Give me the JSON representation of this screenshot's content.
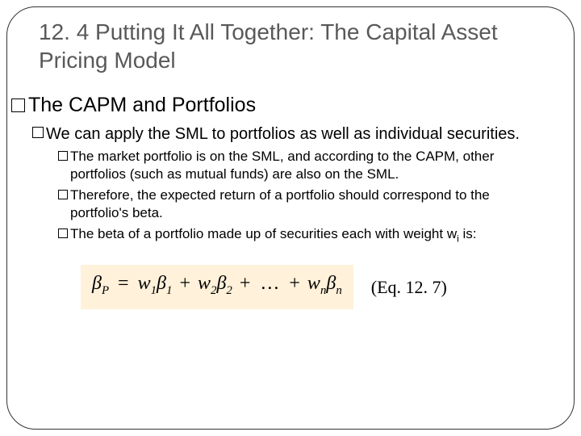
{
  "title": "12. 4 Putting It All Together: The Capital Asset Pricing Model",
  "heading1": "The CAPM and Portfolios",
  "heading2": "We can apply the SML to portfolios as well as individual securities.",
  "bullets": {
    "b1": "The market portfolio is on the SML, and according to the CAPM, other portfolios (such as mutual funds) are also on the SML.",
    "b2": "Therefore, the expected return of a portfolio should correspond to the portfolio's beta.",
    "b3_pre": "The beta of a portfolio made up of securities each with weight w",
    "b3_sub": "i",
    "b3_post": " is:"
  },
  "equation": {
    "beta": "β",
    "P": "P",
    "eq": "=",
    "w": "w",
    "one": "1",
    "two": "2",
    "n": "n",
    "plus": "+",
    "dots": "…"
  },
  "eq_label": "(Eq. 12. 7)",
  "colors": {
    "title_color": "#595959",
    "text_color": "#000000",
    "equation_bg": "#fff1da",
    "frame_color": "#333333"
  }
}
